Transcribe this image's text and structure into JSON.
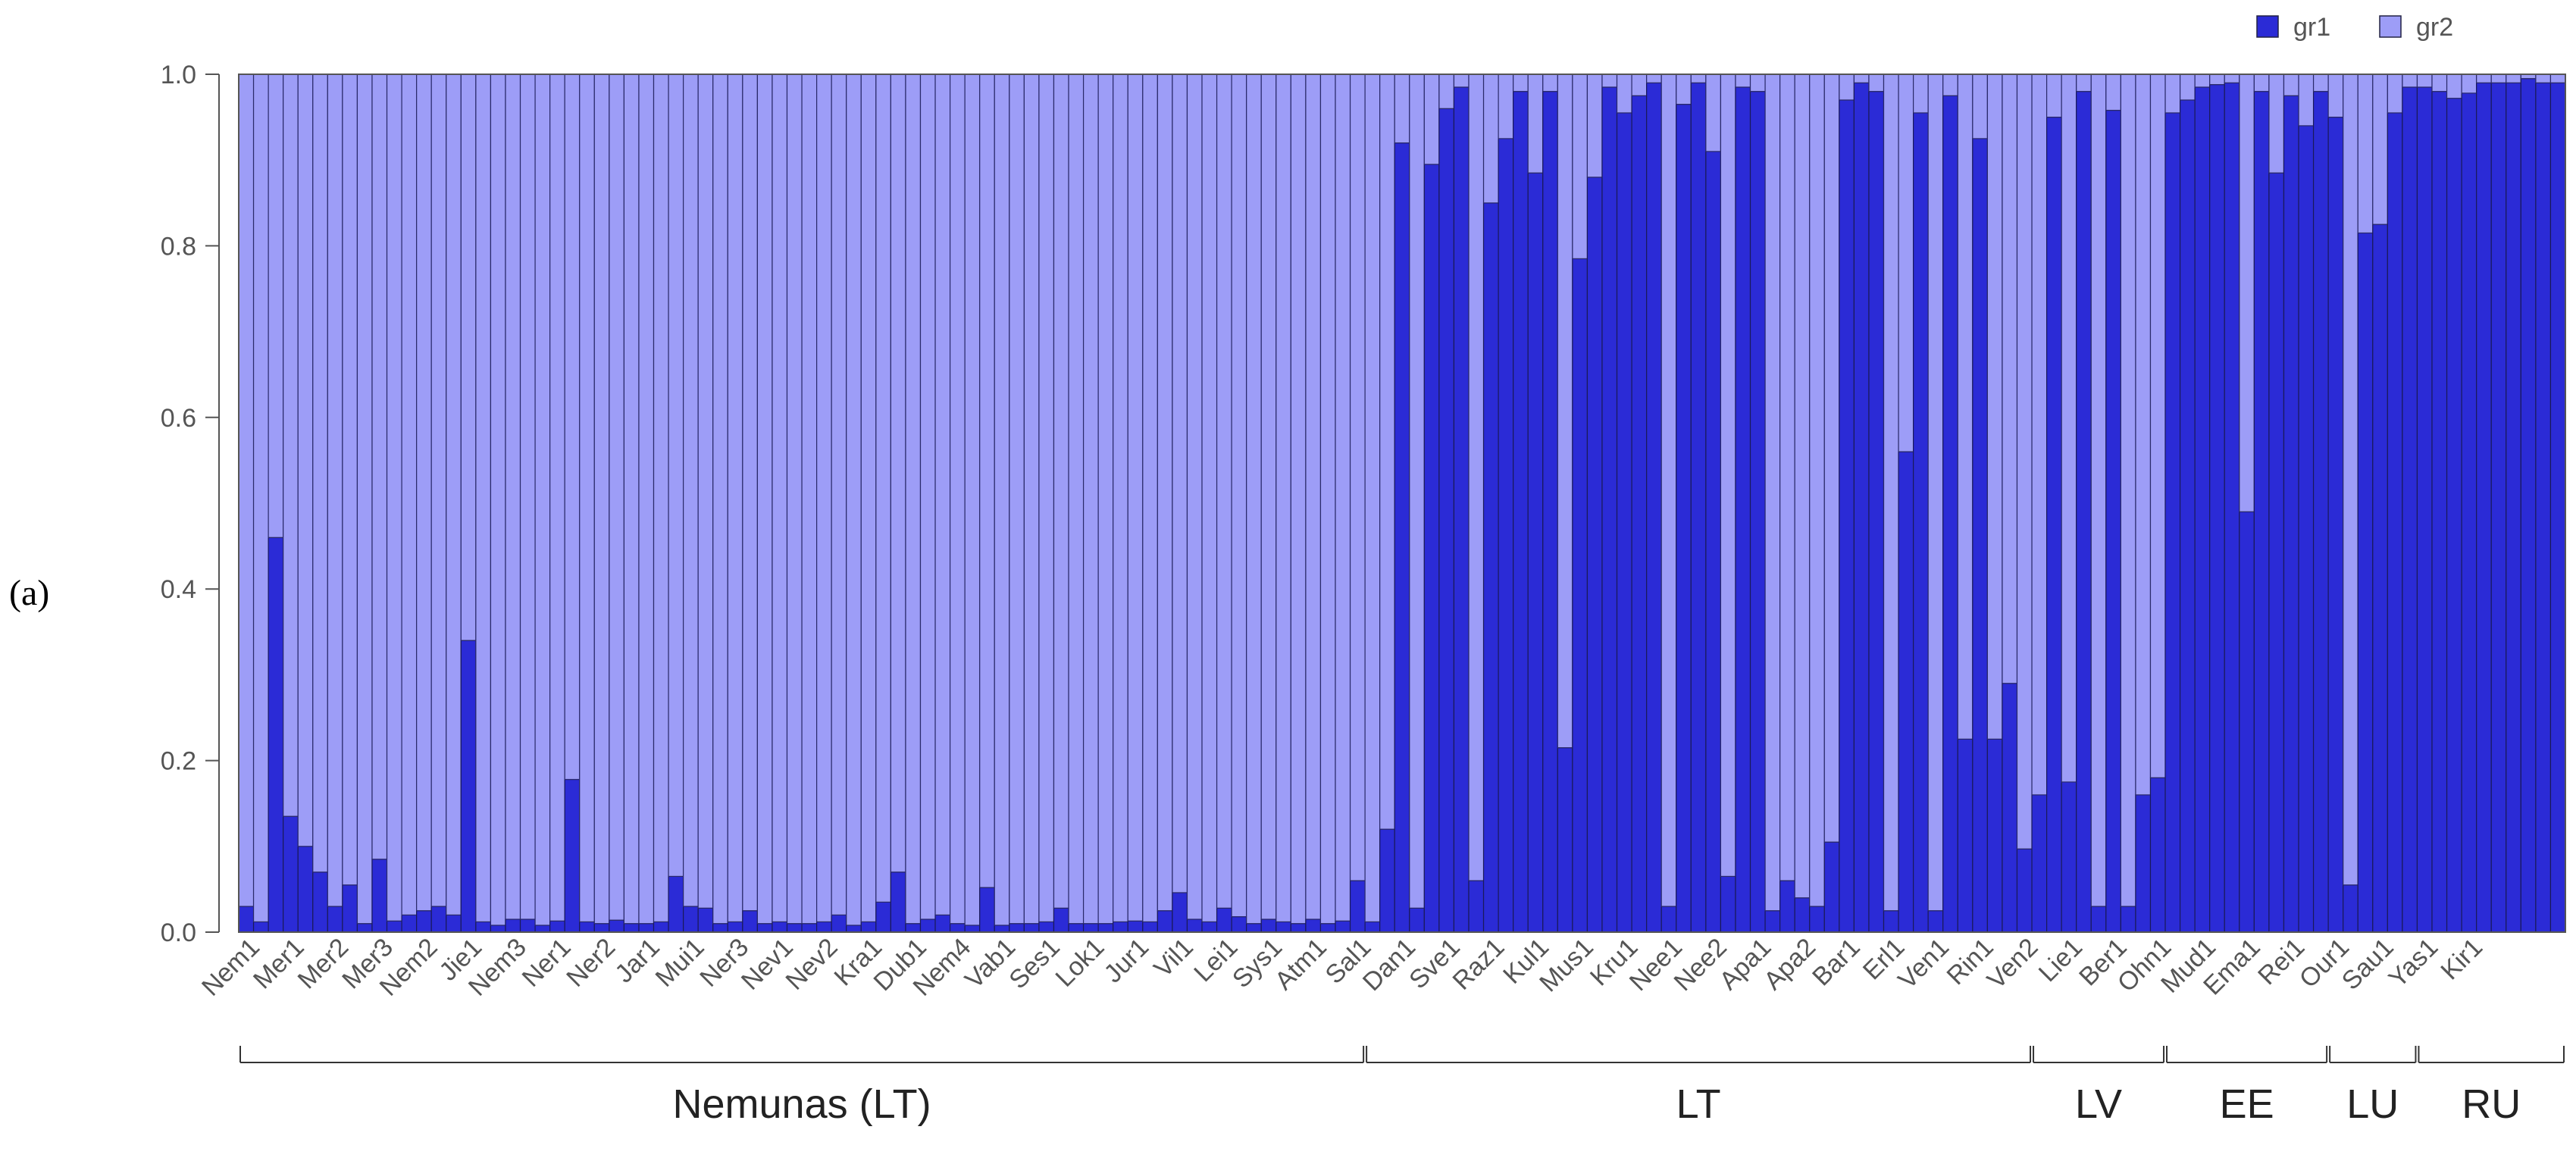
{
  "panel_label": "(a)",
  "chart_data": {
    "type": "bar",
    "stacked": true,
    "ylim": [
      0,
      1
    ],
    "yticks": [
      "0.0",
      "0.2",
      "0.4",
      "0.6",
      "0.8",
      "1.0"
    ],
    "series": [
      {
        "name": "gr1",
        "color": "#2b2bd6"
      },
      {
        "name": "gr2",
        "color": "#9d9df7"
      }
    ],
    "legend": "top-right",
    "values_gr1": [
      0.03,
      0.012,
      0.46,
      0.135,
      0.1,
      0.07,
      0.03,
      0.055,
      0.01,
      0.085,
      0.013,
      0.02,
      0.025,
      0.03,
      0.02,
      0.34,
      0.012,
      0.008,
      0.015,
      0.015,
      0.008,
      0.013,
      0.178,
      0.012,
      0.01,
      0.014,
      0.01,
      0.01,
      0.012,
      0.065,
      0.03,
      0.028,
      0.01,
      0.012,
      0.025,
      0.01,
      0.012,
      0.01,
      0.01,
      0.012,
      0.02,
      0.008,
      0.012,
      0.035,
      0.07,
      0.01,
      0.015,
      0.02,
      0.01,
      0.008,
      0.052,
      0.008,
      0.01,
      0.01,
      0.012,
      0.028,
      0.01,
      0.01,
      0.01,
      0.012,
      0.013,
      0.012,
      0.025,
      0.046,
      0.015,
      0.012,
      0.028,
      0.018,
      0.01,
      0.015,
      0.012,
      0.01,
      0.015,
      0.01,
      0.013,
      0.06,
      0.012,
      0.12,
      0.92,
      0.028,
      0.895,
      0.96,
      0.985,
      0.06,
      0.85,
      0.925,
      0.98,
      0.885,
      0.98,
      0.215,
      0.785,
      0.88,
      0.985,
      0.955,
      0.975,
      0.99,
      0.03,
      0.965,
      0.99,
      0.91,
      0.065,
      0.985,
      0.98,
      0.025,
      0.06,
      0.04,
      0.03,
      0.105,
      0.97,
      0.99,
      0.98,
      0.025,
      0.56,
      0.955,
      0.025,
      0.975,
      0.225,
      0.925,
      0.225,
      0.29,
      0.097,
      0.16,
      0.95,
      0.175,
      0.98,
      0.03,
      0.958,
      0.03,
      0.16,
      0.18,
      0.955,
      0.97,
      0.985,
      0.988,
      0.99,
      0.49,
      0.98,
      0.885,
      0.975,
      0.94,
      0.98,
      0.95,
      0.055,
      0.815,
      0.825,
      0.955,
      0.985,
      0.985,
      0.98,
      0.972,
      0.978,
      0.99,
      0.99,
      0.99,
      0.995,
      0.99,
      0.99
    ],
    "values_note_gr2": "gr2 = 1 - gr1 for each bar",
    "bar_count": 157,
    "tick_labels": [
      {
        "label": "Nem1",
        "bar": 1
      },
      {
        "label": "Mer1",
        "bar": 4
      },
      {
        "label": "Mer2",
        "bar": 7
      },
      {
        "label": "Mer3",
        "bar": 10
      },
      {
        "label": "Nem2",
        "bar": 13
      },
      {
        "label": "Jie1",
        "bar": 16
      },
      {
        "label": "Nem3",
        "bar": 19
      },
      {
        "label": "Ner1",
        "bar": 22
      },
      {
        "label": "Ner2",
        "bar": 25
      },
      {
        "label": "Jar1",
        "bar": 28
      },
      {
        "label": "Mui1",
        "bar": 31
      },
      {
        "label": "Ner3",
        "bar": 34
      },
      {
        "label": "Nev1",
        "bar": 37
      },
      {
        "label": "Nev2",
        "bar": 40
      },
      {
        "label": "Kra1",
        "bar": 43
      },
      {
        "label": "Dub1",
        "bar": 46
      },
      {
        "label": "Nem4",
        "bar": 49
      },
      {
        "label": "Vab1",
        "bar": 52
      },
      {
        "label": "Ses1",
        "bar": 55
      },
      {
        "label": "Lok1",
        "bar": 58
      },
      {
        "label": "Jur1",
        "bar": 61
      },
      {
        "label": "Vil1",
        "bar": 64
      },
      {
        "label": "Lei1",
        "bar": 67
      },
      {
        "label": "Sys1",
        "bar": 70
      },
      {
        "label": "Atm1",
        "bar": 73
      },
      {
        "label": "Sal1",
        "bar": 76
      },
      {
        "label": "Dan1",
        "bar": 79
      },
      {
        "label": "Sve1",
        "bar": 82
      },
      {
        "label": "Raz1",
        "bar": 85
      },
      {
        "label": "Kul1",
        "bar": 88
      },
      {
        "label": "Mus1",
        "bar": 91
      },
      {
        "label": "Kru1",
        "bar": 94
      },
      {
        "label": "Nee1",
        "bar": 97
      },
      {
        "label": "Nee2",
        "bar": 100
      },
      {
        "label": "Apa1",
        "bar": 103
      },
      {
        "label": "Apa2",
        "bar": 106
      },
      {
        "label": "Bar1",
        "bar": 109
      },
      {
        "label": "Erl1",
        "bar": 112
      },
      {
        "label": "Ven1",
        "bar": 115
      },
      {
        "label": "Rin1",
        "bar": 118
      },
      {
        "label": "Ven2",
        "bar": 121
      },
      {
        "label": "Lie1",
        "bar": 124
      },
      {
        "label": "Ber1",
        "bar": 127
      },
      {
        "label": "Ohn1",
        "bar": 130
      },
      {
        "label": "Mud1",
        "bar": 133
      },
      {
        "label": "Ema1",
        "bar": 136
      },
      {
        "label": "Rei1",
        "bar": 139
      },
      {
        "label": "Our1",
        "bar": 142
      },
      {
        "label": "Sau1",
        "bar": 145
      },
      {
        "label": "Yas1",
        "bar": 148
      },
      {
        "label": "Kir1",
        "bar": 151
      }
    ],
    "regions": [
      {
        "label": "Nemunas (LT)",
        "start_bar": 0,
        "end_bar": 75
      },
      {
        "label": "LT",
        "start_bar": 76,
        "end_bar": 120
      },
      {
        "label": "LV",
        "start_bar": 121,
        "end_bar": 129
      },
      {
        "label": "EE",
        "start_bar": 130,
        "end_bar": 140
      },
      {
        "label": "LU",
        "start_bar": 141,
        "end_bar": 146
      },
      {
        "label": "RU",
        "start_bar": 147,
        "end_bar": 156
      }
    ]
  }
}
